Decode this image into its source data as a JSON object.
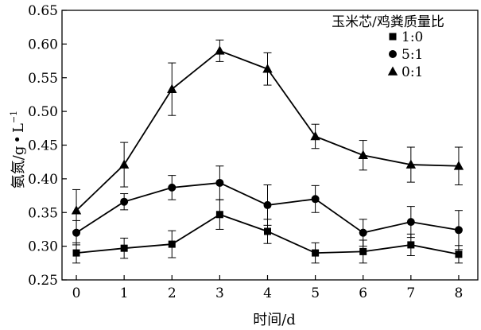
{
  "chart_data": {
    "type": "line",
    "title": "",
    "xlabel": "时间/d",
    "ylabel": "氨氮/g·L⁻¹",
    "ylabel_main": "氨氮/g",
    "ylabel_dot": "•",
    "ylabel_unit": "L",
    "ylabel_exp": "−1",
    "x": [
      0,
      1,
      2,
      3,
      4,
      5,
      6,
      7,
      8
    ],
    "xticks": [
      "0",
      "1",
      "2",
      "3",
      "4",
      "5",
      "6",
      "7",
      "8"
    ],
    "xlim": [
      -0.3,
      8.4
    ],
    "ylim": [
      0.25,
      0.65
    ],
    "yticks": [
      "0.25",
      "0.30",
      "0.35",
      "0.40",
      "0.45",
      "0.50",
      "0.55",
      "0.60",
      "0.65"
    ],
    "grid": false,
    "legend": {
      "title": "玉米芯/鸡粪质量比",
      "placement": "top-right",
      "entries": [
        "1:0",
        "5:1",
        "0:1"
      ]
    },
    "series": [
      {
        "name": "1:0",
        "marker": "square",
        "values": [
          0.29,
          0.297,
          0.303,
          0.347,
          0.322,
          0.29,
          0.292,
          0.302,
          0.288
        ],
        "errors": [
          0.015,
          0.015,
          0.02,
          0.022,
          0.018,
          0.015,
          0.017,
          0.016,
          0.013
        ]
      },
      {
        "name": "5:1",
        "marker": "circle",
        "values": [
          0.32,
          0.366,
          0.387,
          0.394,
          0.361,
          0.37,
          0.32,
          0.336,
          0.324
        ],
        "errors": [
          0.018,
          0.012,
          0.018,
          0.025,
          0.03,
          0.02,
          0.02,
          0.023,
          0.029
        ]
      },
      {
        "name": "0:1",
        "marker": "triangle",
        "values": [
          0.353,
          0.421,
          0.533,
          0.59,
          0.563,
          0.463,
          0.435,
          0.421,
          0.419
        ],
        "errors": [
          0.031,
          0.033,
          0.039,
          0.016,
          0.024,
          0.018,
          0.022,
          0.026,
          0.028
        ]
      }
    ]
  }
}
